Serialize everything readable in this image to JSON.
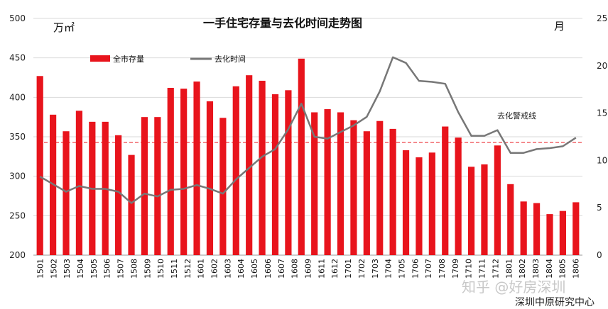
{
  "chart_data": {
    "type": "bar",
    "title": "一手住宅存量与去化时间走势图",
    "left_unit": "万㎡",
    "right_unit": "月",
    "ylim": [
      200,
      500
    ],
    "y_ticks": [
      200,
      250,
      300,
      350,
      400,
      450,
      500
    ],
    "y2lim": [
      0,
      25
    ],
    "y2_ticks": [
      0,
      5,
      10,
      15,
      20,
      25
    ],
    "categories": [
      "1501",
      "1502",
      "1503",
      "1504",
      "1505",
      "1506",
      "1507",
      "1508",
      "1509",
      "1510",
      "1511",
      "1512",
      "1601",
      "1602",
      "1603",
      "1604",
      "1605",
      "1606",
      "1607",
      "1608",
      "1609",
      "1610",
      "1611",
      "1612",
      "1701",
      "1702",
      "1703",
      "1704",
      "1705",
      "1706",
      "1707",
      "1708",
      "1709",
      "1710",
      "1711",
      "1712",
      "1801",
      "1802",
      "1803",
      "1804",
      "1805",
      "1806"
    ],
    "x_tick_labels": [
      "1501",
      "1502",
      "1503",
      "1504",
      "1505",
      "1506",
      "1507",
      "1508",
      "1509",
      "1510",
      "1511",
      "1512",
      "1601",
      "1602",
      "1603",
      "1604",
      "1605",
      "1606",
      "1607",
      "1608",
      "1609",
      "1611",
      "1612",
      "1701",
      "1702",
      "1703",
      "1704",
      "1705",
      "1706",
      "1707",
      "1708",
      "1709",
      "1710",
      "1711",
      "1712",
      "1801",
      "1802",
      "1803",
      "1804",
      "1805",
      "1806"
    ],
    "series": [
      {
        "name": "全市存量",
        "type": "bar",
        "axis": "left",
        "color": "#e8141c",
        "values": [
          427,
          378,
          357,
          383,
          369,
          369,
          352,
          327,
          375,
          375,
          412,
          411,
          420,
          395,
          374,
          414,
          428,
          421,
          404,
          409,
          449,
          381,
          385,
          381,
          371,
          357,
          370,
          360,
          333,
          324,
          330,
          363,
          349,
          312,
          315,
          339,
          290,
          268,
          266,
          252,
          256,
          267
        ]
      },
      {
        "name": "去化时间",
        "type": "line",
        "axis": "right",
        "color": "#777777",
        "values": [
          8.3,
          7.5,
          6.7,
          7.3,
          7.0,
          7.0,
          6.7,
          5.5,
          6.5,
          6.2,
          6.9,
          7.0,
          7.4,
          7.0,
          6.5,
          8.0,
          9.2,
          10.4,
          11.2,
          13.3,
          16.0,
          12.5,
          12.3,
          13.0,
          13.7,
          14.6,
          17.3,
          20.9,
          20.3,
          18.4,
          18.3,
          18.1,
          15.1,
          12.6,
          12.6,
          13.2,
          10.8,
          10.8,
          11.2,
          11.3,
          11.5,
          12.4
        ]
      }
    ],
    "reference_line": {
      "label": "去化警戒线",
      "axis": "right",
      "value": 11.9,
      "color": "#e8141c"
    },
    "watermark": "知乎 @好房深圳",
    "source": "深圳中原研究中心",
    "legend_position": "top-left",
    "grid": true
  }
}
